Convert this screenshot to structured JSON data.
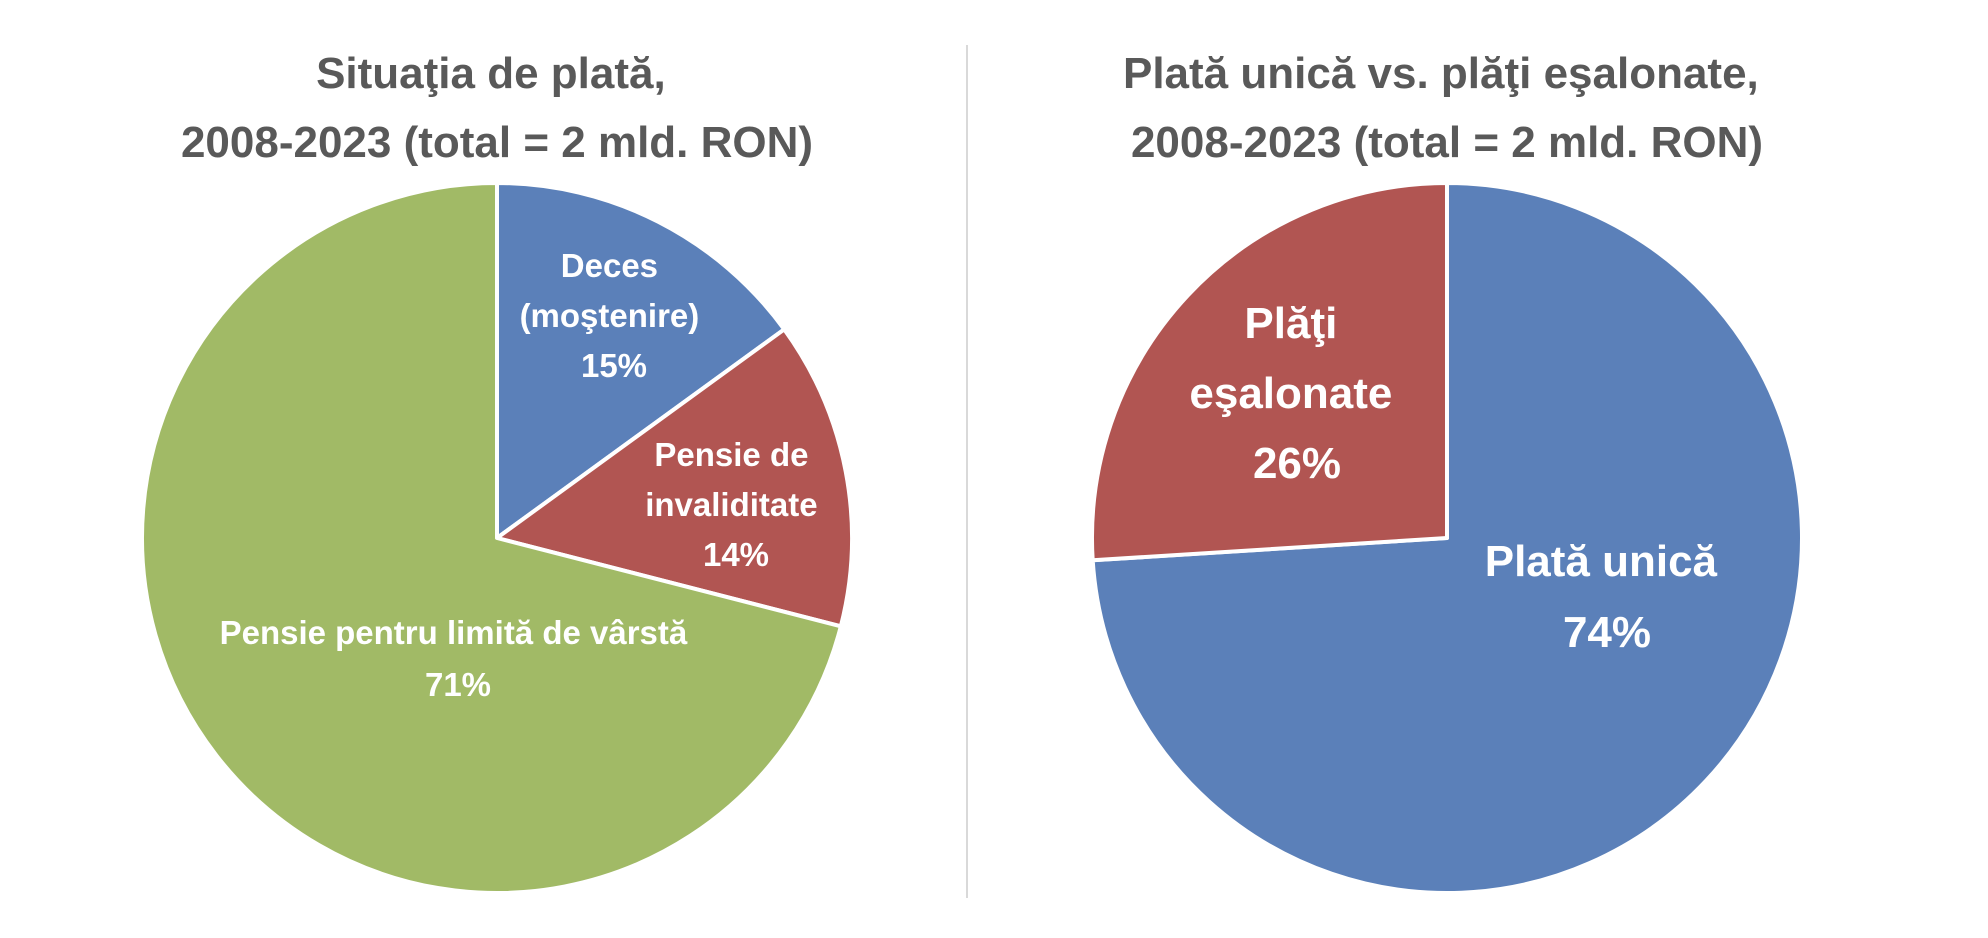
{
  "chart_data": [
    {
      "type": "pie",
      "title_lines": [
        "Situaţia de plată,",
        "2008-2023 (total = 2 mld. RON)"
      ],
      "slices": [
        {
          "label_lines": [
            "Deces",
            "(moştenire)"
          ],
          "value": 15,
          "value_label": "15%",
          "color": "#5B80B9"
        },
        {
          "label_lines": [
            "Pensie de",
            "invaliditate"
          ],
          "value": 14,
          "value_label": "14%",
          "color": "#B15552"
        },
        {
          "label_lines": [
            "Pensie pentru limită de vârstă"
          ],
          "value": 71,
          "value_label": "71%",
          "color": "#A1BA66"
        }
      ],
      "start": "12 o'clock",
      "direction": "clockwise",
      "legend": "none"
    },
    {
      "type": "pie",
      "title_lines": [
        "Plată unică vs. plăţi eşalonate,",
        "2008-2023 (total = 2 mld. RON)"
      ],
      "slices": [
        {
          "label_lines": [
            "Plată unică"
          ],
          "value": 74,
          "value_label": "74%",
          "color": "#5B80B9"
        },
        {
          "label_lines": [
            "Plăţi",
            "eşalonate"
          ],
          "value": 26,
          "value_label": "26%",
          "color": "#B15552"
        }
      ],
      "start": "12 o'clock",
      "direction": "clockwise",
      "legend": "none"
    }
  ],
  "colors": {
    "background": "#FFFFFF",
    "title": "#595959",
    "slice_border": "#FFFFFF",
    "divider": "#D9D9D9",
    "label_text": "#FFFFFF"
  }
}
